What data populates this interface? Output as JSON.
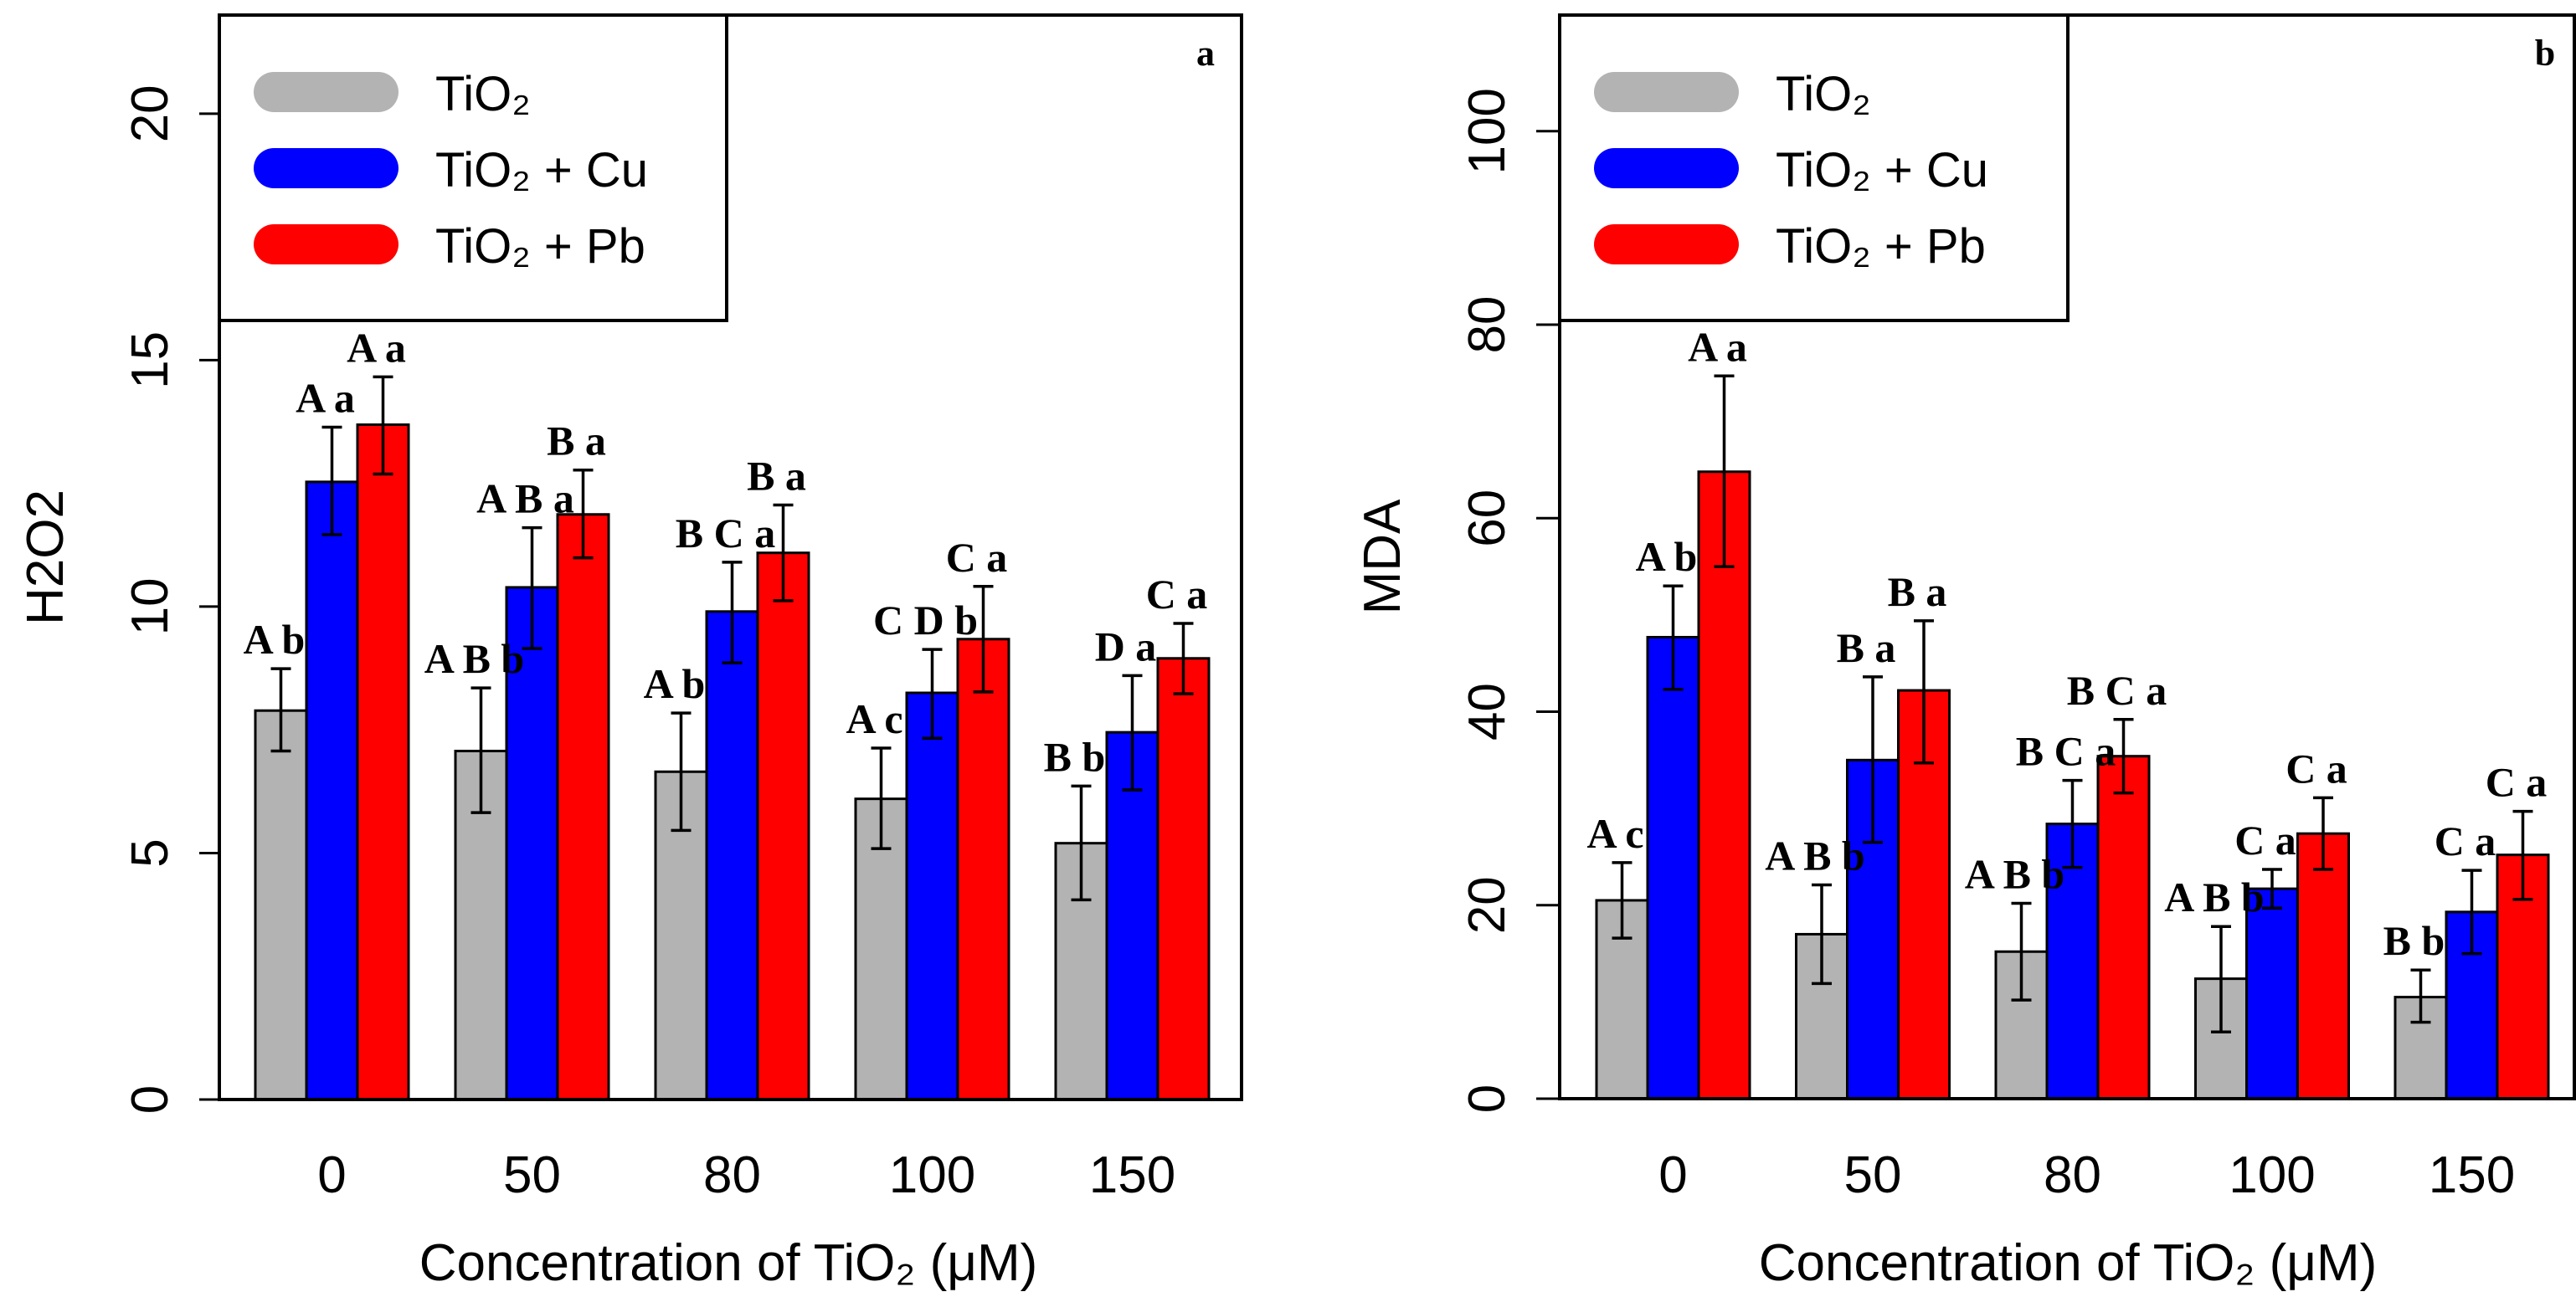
{
  "chart_data": [
    {
      "type": "bar",
      "panel_label": "a",
      "xlabel": "Concentration of TiO₂ (μM)",
      "ylabel": "H2O2",
      "ylim": [
        0,
        22
      ],
      "yticks": [
        "0",
        "5",
        "10",
        "15",
        "20"
      ],
      "ytick_values": [
        0,
        5,
        10,
        15,
        20
      ],
      "categories": [
        "0",
        "50",
        "80",
        "100",
        "150"
      ],
      "legend_placement": "top-left",
      "series": [
        {
          "name": "TiO₂",
          "color": "#b3b3b3",
          "values": [
            7.89,
            7.07,
            6.65,
            6.1,
            5.2
          ],
          "err_upper": [
            8.74,
            8.35,
            7.84,
            7.13,
            6.36
          ],
          "err_lower": [
            7.07,
            5.82,
            5.46,
            5.09,
            4.05
          ],
          "labels": [
            "A b",
            "A B b",
            "A b",
            "A c",
            "B b"
          ]
        },
        {
          "name": "TiO₂ + Cu",
          "color": "#0000ff",
          "values": [
            12.53,
            10.39,
            9.9,
            8.25,
            7.45
          ],
          "err_upper": [
            13.64,
            11.6,
            10.9,
            9.13,
            8.6
          ],
          "err_lower": [
            11.46,
            9.15,
            8.86,
            7.33,
            6.28
          ],
          "labels": [
            "A a",
            "A B a",
            "B C a",
            "C D b",
            "D a"
          ]
        },
        {
          "name": "TiO₂ + Pb",
          "color": "#ff0000",
          "values": [
            13.69,
            11.87,
            11.09,
            9.34,
            8.95
          ],
          "err_upper": [
            14.66,
            12.77,
            12.06,
            10.41,
            9.66
          ],
          "err_lower": [
            12.69,
            10.99,
            10.12,
            8.27,
            8.23
          ],
          "labels": [
            "A a",
            "B a",
            "B a",
            "C a",
            "C a"
          ]
        }
      ]
    },
    {
      "type": "bar",
      "panel_label": "b",
      "xlabel": "Concentration of TiO₂ (μM)",
      "ylabel": "MDA",
      "ylim": [
        0,
        112
      ],
      "yticks": [
        "0",
        "20",
        "40",
        "60",
        "80",
        "100"
      ],
      "ytick_values": [
        0,
        20,
        40,
        60,
        80,
        100
      ],
      "categories": [
        "0",
        "50",
        "80",
        "100",
        "150"
      ],
      "legend_placement": "top-left",
      "series": [
        {
          "name": "TiO₂",
          "color": "#b3b3b3",
          "values": [
            20.5,
            17.0,
            15.2,
            12.4,
            10.5
          ],
          "err_upper": [
            24.4,
            22.1,
            20.2,
            17.8,
            13.3
          ],
          "err_lower": [
            16.6,
            11.9,
            10.2,
            6.9,
            7.9
          ],
          "labels": [
            "A c",
            "A B b",
            "A B b",
            "A B b",
            "B b"
          ]
        },
        {
          "name": "TiO₂ + Cu",
          "color": "#0000ff",
          "values": [
            47.7,
            35.0,
            28.4,
            21.7,
            19.3
          ],
          "err_upper": [
            53.0,
            43.6,
            32.9,
            23.7,
            23.6
          ],
          "err_lower": [
            42.3,
            26.5,
            23.9,
            19.7,
            15.0
          ],
          "labels": [
            "A b",
            "B a",
            "B C a",
            "C a",
            "C a"
          ]
        },
        {
          "name": "TiO₂ + Pb",
          "color": "#ff0000",
          "values": [
            64.8,
            42.2,
            35.4,
            27.4,
            25.2
          ],
          "err_upper": [
            74.7,
            49.4,
            39.2,
            31.1,
            29.7
          ],
          "err_lower": [
            55.0,
            34.7,
            31.6,
            23.7,
            20.6
          ],
          "labels": [
            "A a",
            "B a",
            "B C a",
            "C a",
            "C a"
          ]
        }
      ]
    }
  ]
}
